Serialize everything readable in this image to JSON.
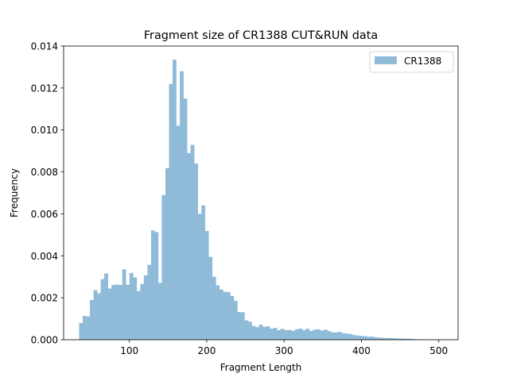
{
  "chart_data": {
    "type": "bar",
    "subtype": "histogram",
    "title": "Fragment size of CR1388 CUT&RUN data",
    "xlabel": "Fragment Length",
    "ylabel": "Frequency",
    "xlim": [
      15,
      525
    ],
    "ylim": [
      0,
      0.014
    ],
    "x_ticks": [
      100,
      200,
      300,
      400,
      500
    ],
    "x_tick_labels": [
      "100",
      "200",
      "300",
      "400",
      "500"
    ],
    "y_ticks": [
      0,
      0.002,
      0.004,
      0.006,
      0.008,
      0.01,
      0.012,
      0.014
    ],
    "y_tick_labels": [
      "0.000",
      "0.002",
      "0.004",
      "0.006",
      "0.008",
      "0.010",
      "0.012",
      "0.014"
    ],
    "grid": false,
    "legend_position": "top-right",
    "bin_start": 35,
    "bin_width": 4.65,
    "series": [
      {
        "name": "CR1388",
        "color": "#8fbbd9",
        "values": [
          0.0008,
          0.00113,
          0.00111,
          0.00189,
          0.00237,
          0.00222,
          0.00289,
          0.00316,
          0.00244,
          0.00261,
          0.00263,
          0.00261,
          0.00336,
          0.00262,
          0.00318,
          0.00297,
          0.00232,
          0.00266,
          0.00307,
          0.00357,
          0.00521,
          0.00513,
          0.00271,
          0.0069,
          0.00818,
          0.0122,
          0.01335,
          0.0102,
          0.0128,
          0.0115,
          0.0089,
          0.00929,
          0.0084,
          0.006,
          0.0064,
          0.00518,
          0.00395,
          0.003,
          0.00259,
          0.0024,
          0.00229,
          0.00227,
          0.00209,
          0.00185,
          0.00132,
          0.00131,
          0.00092,
          0.00086,
          0.00066,
          0.0006,
          0.00072,
          0.00062,
          0.00064,
          0.00053,
          0.00056,
          0.00046,
          0.00052,
          0.00046,
          0.00047,
          0.00043,
          0.0005,
          0.00053,
          0.00046,
          0.00053,
          0.00042,
          0.00048,
          0.0005,
          0.00044,
          0.00048,
          0.00041,
          0.00035,
          0.00035,
          0.00037,
          0.00031,
          0.00029,
          0.00027,
          0.00022,
          0.0002,
          0.00018,
          0.00017,
          0.00014,
          0.00015,
          0.00012,
          0.0001,
          9e-05,
          8e-05,
          8e-05,
          7e-05,
          6e-05,
          6e-05,
          5e-05,
          5e-05,
          4e-05,
          3e-05,
          2e-05,
          1e-05,
          1e-05,
          1e-05,
          5e-06,
          2e-05
        ]
      }
    ]
  }
}
